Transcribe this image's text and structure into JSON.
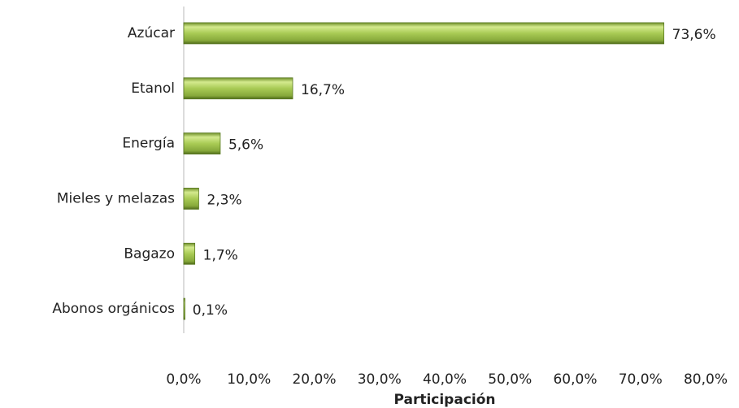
{
  "chart_data": {
    "type": "bar",
    "orientation": "horizontal",
    "categories": [
      "Azúcar",
      "Etanol",
      "Energía",
      "Mieles y melazas",
      "Bagazo",
      "Abonos orgánicos"
    ],
    "values": [
      73.6,
      16.7,
      5.6,
      2.3,
      1.7,
      0.1
    ],
    "value_labels": [
      "73,6%",
      "16,7%",
      "5,6%",
      "2,3%",
      "1,7%",
      "0,1%"
    ],
    "color": "#9fc24c",
    "xlim": [
      0,
      80
    ],
    "xticks": [
      {
        "value": 0,
        "label": "0,0%"
      },
      {
        "value": 10,
        "label": "10,0%"
      },
      {
        "value": 20,
        "label": "20,0%"
      },
      {
        "value": 30,
        "label": "30,0%"
      },
      {
        "value": 40,
        "label": "40,0%"
      },
      {
        "value": 50,
        "label": "50,0%"
      },
      {
        "value": 60,
        "label": "60,0%"
      },
      {
        "value": 70,
        "label": "70,0%"
      },
      {
        "value": 80,
        "label": "80,0%"
      }
    ],
    "x_label": "Participación",
    "grid": false
  }
}
